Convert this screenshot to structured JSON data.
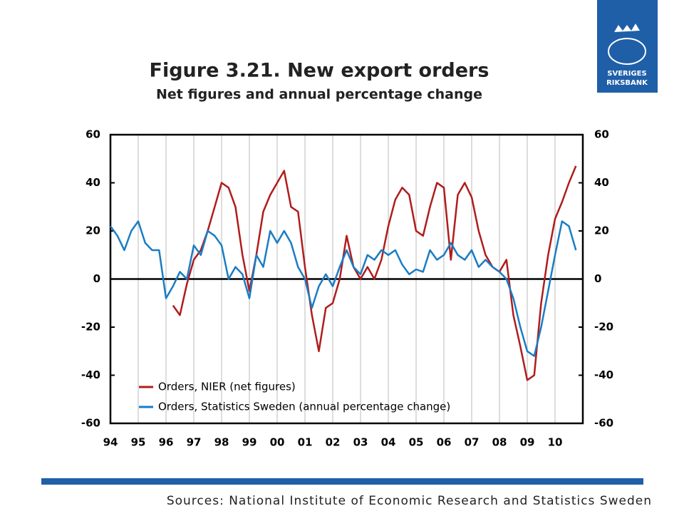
{
  "chart_data": {
    "type": "line",
    "title": "Figure 3.21. New export orders",
    "subtitle": "Net figures and annual percentage change",
    "x": [
      1994.0,
      1994.25,
      1994.5,
      1994.75,
      1995.0,
      1995.25,
      1995.5,
      1995.75,
      1996.0,
      1996.25,
      1996.5,
      1996.75,
      1997.0,
      1997.25,
      1997.5,
      1997.75,
      1998.0,
      1998.25,
      1998.5,
      1998.75,
      1999.0,
      1999.25,
      1999.5,
      1999.75,
      2000.0,
      2000.25,
      2000.5,
      2000.75,
      2001.0,
      2001.25,
      2001.5,
      2001.75,
      2002.0,
      2002.25,
      2002.5,
      2002.75,
      2003.0,
      2003.25,
      2003.5,
      2003.75,
      2004.0,
      2004.25,
      2004.5,
      2004.75,
      2005.0,
      2005.25,
      2005.5,
      2005.75,
      2006.0,
      2006.25,
      2006.5,
      2006.75,
      2007.0,
      2007.25,
      2007.5,
      2007.75,
      2008.0,
      2008.25,
      2008.5,
      2008.75,
      2009.0,
      2009.25,
      2009.5,
      2009.75,
      2010.0,
      2010.25,
      2010.5,
      2010.75
    ],
    "series": [
      {
        "name": "Orders, NIER (net figures)",
        "color": "#b01c1c",
        "values": [
          null,
          null,
          null,
          null,
          null,
          null,
          null,
          null,
          null,
          -11,
          -15,
          -2,
          8,
          12,
          20,
          30,
          40,
          38,
          30,
          10,
          -5,
          10,
          28,
          35,
          40,
          45,
          30,
          28,
          5,
          -15,
          -30,
          -12,
          -10,
          0,
          18,
          5,
          0,
          5,
          0,
          8,
          22,
          33,
          38,
          35,
          20,
          18,
          30,
          40,
          38,
          8,
          35,
          40,
          34,
          20,
          10,
          5,
          3,
          8,
          -15,
          -28,
          -42,
          -40,
          -10,
          10,
          25,
          32,
          40,
          47
        ]
      },
      {
        "name": "Orders, Statistics Sweden (annual percentage change)",
        "color": "#1a7cc4",
        "values": [
          22,
          18,
          12,
          20,
          24,
          15,
          12,
          12,
          -8,
          -3,
          3,
          0,
          14,
          10,
          20,
          18,
          14,
          0,
          5,
          2,
          -8,
          10,
          5,
          20,
          15,
          20,
          15,
          5,
          0,
          -12,
          -3,
          2,
          -3,
          5,
          12,
          5,
          2,
          10,
          8,
          12,
          10,
          12,
          6,
          2,
          4,
          3,
          12,
          8,
          10,
          15,
          10,
          8,
          12,
          5,
          8,
          5,
          3,
          0,
          -8,
          -20,
          -30,
          -32,
          -20,
          -5,
          10,
          24,
          22,
          12
        ]
      }
    ],
    "xlim": [
      1994,
      2011
    ],
    "xticks": [
      {
        "value": 1994,
        "label": "94"
      },
      {
        "value": 1995,
        "label": "95"
      },
      {
        "value": 1996,
        "label": "96"
      },
      {
        "value": 1997,
        "label": "97"
      },
      {
        "value": 1998,
        "label": "98"
      },
      {
        "value": 1999,
        "label": "99"
      },
      {
        "value": 2000,
        "label": "00"
      },
      {
        "value": 2001,
        "label": "01"
      },
      {
        "value": 2002,
        "label": "02"
      },
      {
        "value": 2003,
        "label": "03"
      },
      {
        "value": 2004,
        "label": "04"
      },
      {
        "value": 2005,
        "label": "05"
      },
      {
        "value": 2006,
        "label": "06"
      },
      {
        "value": 2007,
        "label": "07"
      },
      {
        "value": 2008,
        "label": "08"
      },
      {
        "value": 2009,
        "label": "09"
      },
      {
        "value": 2010,
        "label": "10"
      }
    ],
    "ylim": [
      -60,
      60
    ],
    "yticks": [
      -60,
      -40,
      -20,
      0,
      20,
      40,
      60
    ],
    "y2lim": [
      -60,
      60
    ],
    "y2ticks": [
      -60,
      -40,
      -20,
      0,
      20,
      40,
      60
    ],
    "grid": true,
    "zero_line": true,
    "legend": "lower left"
  },
  "source": "Sources: National Institute of Economic Research and Statistics Sweden",
  "logo": {
    "line1": "SVERIGES",
    "line2": "RIKSBANK"
  }
}
